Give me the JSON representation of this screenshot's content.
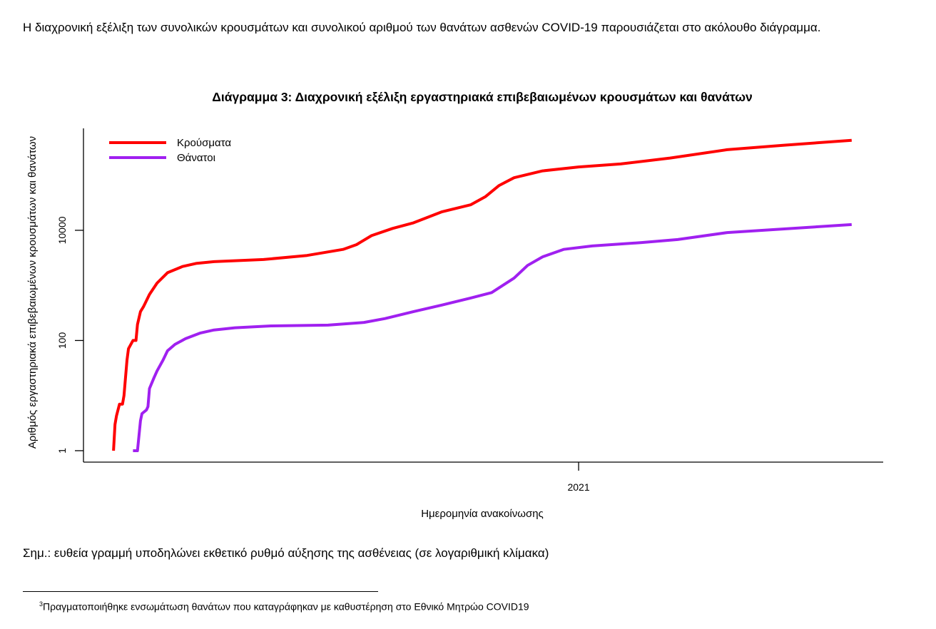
{
  "intro_text": "Η διαχρονική εξέλιξη των συνολικών κρουσμάτων και συνολικού αριθμού των θανάτων ασθενών COVID-19 παρουσιάζεται στο ακόλουθο διάγραμμα.",
  "chart_data": {
    "type": "line",
    "title": "Διάγραμμα 3: Διαχρονική εξέλιξη εργαστηριακά επιβεβαιωμένων κρουσμάτων και θανάτων",
    "xlabel": "Ημερομηνία ανακοίνωσης",
    "ylabel": "Αριθμός εργαστηριακά επιβεβαιωμένων κρουσμάτων και θανάτων",
    "x_unit": "days since first reported case",
    "xlim": [
      -20,
      513
    ],
    "ylim": [
      0.62,
      708000
    ],
    "yscale": "log",
    "x_ticks": [
      {
        "value": 310,
        "label": "2021"
      }
    ],
    "y_ticks": [
      {
        "value": 1,
        "label": "1"
      },
      {
        "value": 100,
        "label": "100"
      },
      {
        "value": 10000,
        "label": "10000"
      }
    ],
    "grid": false,
    "legend_position": "top-left",
    "series": [
      {
        "name": "Κρούσματα",
        "color": "#ff0000",
        "x": [
          0,
          1,
          2,
          4,
          6,
          7,
          9,
          10,
          13,
          15,
          16,
          18,
          20,
          24,
          29,
          36,
          46,
          55,
          67,
          100,
          129,
          153,
          162,
          172,
          186,
          200,
          219,
          238,
          248,
          257,
          267,
          286,
          310,
          338,
          371,
          409,
          447,
          492
        ],
        "y": [
          1,
          3,
          4.3,
          7,
          7,
          10,
          44,
          71,
          100,
          100,
          195,
          335,
          410,
          685,
          1100,
          1700,
          2200,
          2500,
          2700,
          2950,
          3500,
          4500,
          5500,
          8000,
          10800,
          13700,
          21700,
          29000,
          41000,
          65000,
          90000,
          120000,
          141000,
          160000,
          205000,
          290000,
          350000,
          430000
        ]
      },
      {
        "name": "Θάνατοι",
        "color": "#a020f0",
        "x": [
          13,
          16,
          18,
          19,
          22,
          23,
          24,
          27,
          29,
          33,
          36,
          41,
          48,
          58,
          67,
          81,
          105,
          143,
          167,
          181,
          200,
          219,
          238,
          252,
          267,
          276,
          286,
          300,
          319,
          352,
          376,
          409,
          447,
          492
        ],
        "y": [
          1,
          1,
          3.5,
          4.7,
          5.5,
          6.3,
          13.4,
          21,
          28,
          44,
          65,
          85,
          108,
          137,
          155,
          170,
          184,
          190,
          213,
          250,
          335,
          440,
          590,
          740,
          1360,
          2300,
          3300,
          4500,
          5200,
          6000,
          6800,
          9100,
          10600,
          12700
        ]
      }
    ]
  },
  "note": "Σημ.: ευθεία γραμμή υποδηλώνει εκθετικό ρυθμό αύξησης της ασθένειας (σε λογαριθμική κλίμακα)",
  "footnote": {
    "marker": "3",
    "text": "Πραγματοποιήθηκε ενσωμάτωση θανάτων που καταγράφηκαν με καθυστέρηση στο Εθνικό Μητρώο COVID19"
  }
}
